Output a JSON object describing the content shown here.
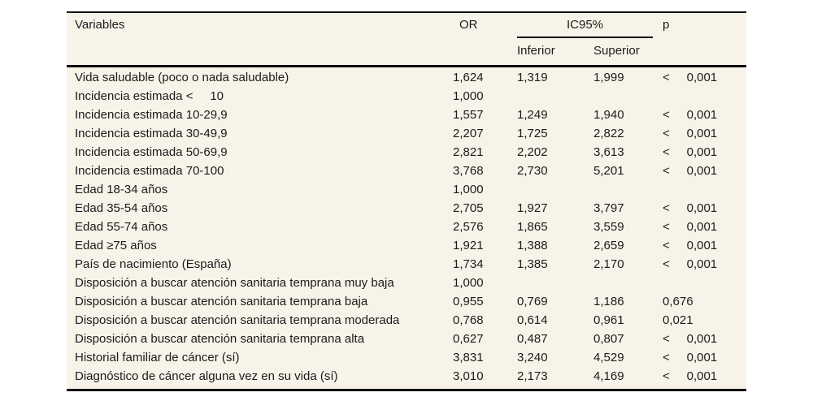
{
  "table": {
    "headers": {
      "variables": "Variables",
      "or": "OR",
      "ic95": "IC95%",
      "inferior": "Inferior",
      "superior": "Superior",
      "p": "p"
    },
    "rows": [
      {
        "variable": "Vida saludable (poco o nada saludable)",
        "or": "1,624",
        "inferior": "1,319",
        "superior": "1,999",
        "p": "<     0,001"
      },
      {
        "variable": "Incidencia estimada <     10",
        "or": "1,000",
        "inferior": "",
        "superior": "",
        "p": ""
      },
      {
        "variable": "Incidencia estimada 10-29,9",
        "or": "1,557",
        "inferior": "1,249",
        "superior": "1,940",
        "p": "<     0,001"
      },
      {
        "variable": "Incidencia estimada 30-49,9",
        "or": "2,207",
        "inferior": "1,725",
        "superior": "2,822",
        "p": "<     0,001"
      },
      {
        "variable": "Incidencia estimada 50-69,9",
        "or": "2,821",
        "inferior": "2,202",
        "superior": "3,613",
        "p": "<     0,001"
      },
      {
        "variable": "Incidencia estimada 70-100",
        "or": "3,768",
        "inferior": "2,730",
        "superior": "5,201",
        "p": "<     0,001"
      },
      {
        "variable": "Edad 18-34 años",
        "or": "1,000",
        "inferior": "",
        "superior": "",
        "p": ""
      },
      {
        "variable": "Edad 35-54 años",
        "or": "2,705",
        "inferior": "1,927",
        "superior": "3,797",
        "p": "<     0,001"
      },
      {
        "variable": "Edad 55-74 años",
        "or": "2,576",
        "inferior": "1,865",
        "superior": "3,559",
        "p": "<     0,001"
      },
      {
        "variable": "Edad ≥75 años",
        "or": "1,921",
        "inferior": "1,388",
        "superior": "2,659",
        "p": "<     0,001"
      },
      {
        "variable": "País de nacimiento (España)",
        "or": "1,734",
        "inferior": "1,385",
        "superior": "2,170",
        "p": "<     0,001"
      },
      {
        "variable": "Disposición a buscar atención sanitaria temprana muy baja",
        "or": "1,000",
        "inferior": "",
        "superior": "",
        "p": ""
      },
      {
        "variable": "Disposición a buscar atención sanitaria temprana baja",
        "or": "0,955",
        "inferior": "0,769",
        "superior": "1,186",
        "p": "0,676"
      },
      {
        "variable": "Disposición a buscar atención sanitaria temprana moderada",
        "or": "0,768",
        "inferior": "0,614",
        "superior": "0,961",
        "p": "0,021"
      },
      {
        "variable": "Disposición a buscar atención sanitaria temprana alta",
        "or": "0,627",
        "inferior": "0,487",
        "superior": "0,807",
        "p": "<     0,001"
      },
      {
        "variable": "Historial familiar de cáncer (sí)",
        "or": "3,831",
        "inferior": "3,240",
        "superior": "4,529",
        "p": "<     0,001"
      },
      {
        "variable": "Diagnóstico de cáncer alguna vez en su vida (sí)",
        "or": "3,010",
        "inferior": "2,173",
        "superior": "4,169",
        "p": "<     0,001"
      }
    ]
  },
  "colors": {
    "panel_background": "#f8f3e9",
    "border": "#000000",
    "text": "#1b1b1b",
    "page_background": "#ffffff"
  }
}
